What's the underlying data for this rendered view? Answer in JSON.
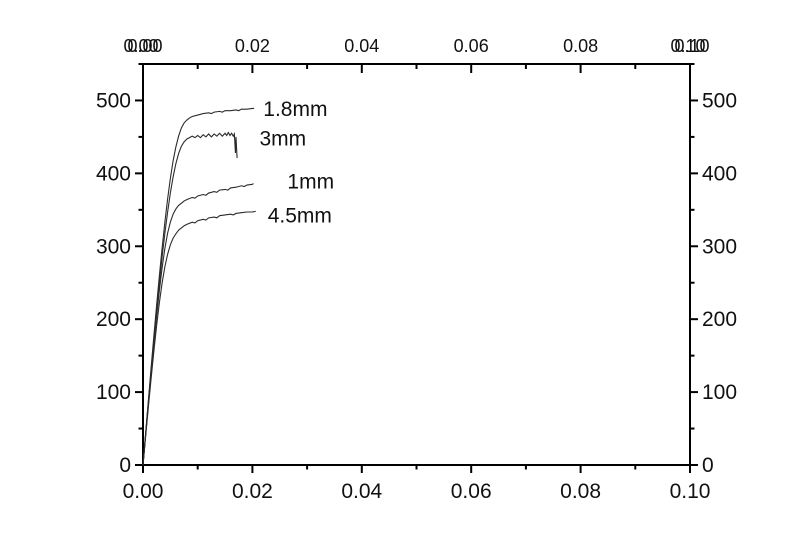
{
  "figure": {
    "background": "#ffffff",
    "frame_color": "#000000",
    "curve_color": "#2b2b2b"
  },
  "chart_data": {
    "type": "line",
    "title": "",
    "xlabel": "",
    "ylabel": "",
    "xlim": [
      0,
      0.1
    ],
    "ylim": [
      0,
      550
    ],
    "grid": false,
    "legend": "inline-annotations",
    "axes_mirrored": true,
    "top_axis_end_labels_doubled": true,
    "x_major_ticks": [
      0,
      0.02,
      0.04,
      0.06,
      0.08,
      0.1
    ],
    "x_major_tick_labels": [
      "0.00",
      "0.02",
      "0.04",
      "0.06",
      "0.08",
      "0.10"
    ],
    "x_minor_ticks": [
      0.01,
      0.03,
      0.05,
      0.07,
      0.09
    ],
    "y_major_ticks": [
      0,
      100,
      200,
      300,
      400,
      500
    ],
    "y_major_tick_labels": [
      "0",
      "100",
      "200",
      "300",
      "400",
      "500"
    ],
    "y_minor_ticks": [
      50,
      150,
      250,
      350,
      450,
      550
    ],
    "series": [
      {
        "name": "1.8mm",
        "points": [
          [
            0,
            0
          ],
          [
            0.0005,
            45
          ],
          [
            0.001,
            90
          ],
          [
            0.0015,
            135
          ],
          [
            0.002,
            178
          ],
          [
            0.0025,
            220
          ],
          [
            0.003,
            260
          ],
          [
            0.0035,
            298
          ],
          [
            0.004,
            333
          ],
          [
            0.0045,
            365
          ],
          [
            0.005,
            393
          ],
          [
            0.0055,
            417
          ],
          [
            0.006,
            436
          ],
          [
            0.0065,
            451
          ],
          [
            0.007,
            462
          ],
          [
            0.0075,
            469
          ],
          [
            0.008,
            473
          ],
          [
            0.0085,
            476
          ],
          [
            0.009,
            478
          ],
          [
            0.01,
            480
          ],
          [
            0.011,
            482
          ],
          [
            0.012,
            483
          ],
          [
            0.0125,
            482
          ],
          [
            0.013,
            484
          ],
          [
            0.014,
            485
          ],
          [
            0.0145,
            484
          ],
          [
            0.015,
            486
          ],
          [
            0.016,
            486
          ],
          [
            0.017,
            487
          ],
          [
            0.0175,
            486
          ],
          [
            0.018,
            488
          ],
          [
            0.019,
            488
          ],
          [
            0.02,
            489
          ],
          [
            0.0203,
            489
          ]
        ]
      },
      {
        "name": "3mm",
        "points": [
          [
            0,
            0
          ],
          [
            0.0005,
            44
          ],
          [
            0.001,
            88
          ],
          [
            0.0015,
            131
          ],
          [
            0.002,
            172
          ],
          [
            0.0025,
            212
          ],
          [
            0.003,
            250
          ],
          [
            0.0035,
            286
          ],
          [
            0.004,
            318
          ],
          [
            0.0045,
            347
          ],
          [
            0.005,
            373
          ],
          [
            0.0055,
            395
          ],
          [
            0.006,
            413
          ],
          [
            0.0065,
            427
          ],
          [
            0.007,
            437
          ],
          [
            0.0075,
            443
          ],
          [
            0.008,
            447
          ],
          [
            0.0085,
            449
          ],
          [
            0.009,
            451
          ],
          [
            0.0095,
            449
          ],
          [
            0.01,
            452
          ],
          [
            0.0105,
            449
          ],
          [
            0.011,
            453
          ],
          [
            0.0115,
            450
          ],
          [
            0.012,
            454
          ],
          [
            0.0125,
            450
          ],
          [
            0.013,
            454
          ],
          [
            0.0135,
            451
          ],
          [
            0.014,
            455
          ],
          [
            0.0145,
            451
          ],
          [
            0.015,
            455
          ],
          [
            0.0153,
            452
          ],
          [
            0.0156,
            456
          ],
          [
            0.0159,
            452
          ],
          [
            0.0162,
            455
          ],
          [
            0.0165,
            451
          ],
          [
            0.0167,
            454
          ],
          [
            0.0169,
            428
          ],
          [
            0.017,
            450
          ],
          [
            0.0172,
            421
          ]
        ]
      },
      {
        "name": "1mm",
        "points": [
          [
            0,
            0
          ],
          [
            0.0005,
            43
          ],
          [
            0.001,
            85
          ],
          [
            0.0015,
            127
          ],
          [
            0.002,
            167
          ],
          [
            0.0025,
            205
          ],
          [
            0.003,
            240
          ],
          [
            0.0035,
            271
          ],
          [
            0.004,
            297
          ],
          [
            0.0045,
            318
          ],
          [
            0.005,
            333
          ],
          [
            0.0055,
            344
          ],
          [
            0.006,
            351
          ],
          [
            0.0065,
            356
          ],
          [
            0.007,
            359
          ],
          [
            0.0075,
            362
          ],
          [
            0.008,
            364
          ],
          [
            0.009,
            367
          ],
          [
            0.0095,
            366
          ],
          [
            0.01,
            369
          ],
          [
            0.011,
            371
          ],
          [
            0.0115,
            370
          ],
          [
            0.012,
            373
          ],
          [
            0.013,
            375
          ],
          [
            0.0135,
            374
          ],
          [
            0.014,
            377
          ],
          [
            0.015,
            378
          ],
          [
            0.0155,
            377
          ],
          [
            0.016,
            380
          ],
          [
            0.017,
            381
          ],
          [
            0.018,
            383
          ],
          [
            0.0185,
            382
          ],
          [
            0.019,
            384
          ],
          [
            0.02,
            385
          ],
          [
            0.0202,
            386
          ]
        ]
      },
      {
        "name": "4.5mm",
        "points": [
          [
            0,
            0
          ],
          [
            0.0005,
            41
          ],
          [
            0.001,
            81
          ],
          [
            0.0015,
            120
          ],
          [
            0.002,
            157
          ],
          [
            0.0025,
            192
          ],
          [
            0.003,
            223
          ],
          [
            0.0035,
            250
          ],
          [
            0.004,
            272
          ],
          [
            0.0045,
            289
          ],
          [
            0.005,
            302
          ],
          [
            0.0055,
            311
          ],
          [
            0.006,
            317
          ],
          [
            0.0065,
            322
          ],
          [
            0.007,
            325
          ],
          [
            0.0075,
            328
          ],
          [
            0.008,
            330
          ],
          [
            0.009,
            333
          ],
          [
            0.0095,
            332
          ],
          [
            0.01,
            335
          ],
          [
            0.011,
            337
          ],
          [
            0.0115,
            336
          ],
          [
            0.012,
            339
          ],
          [
            0.013,
            340
          ],
          [
            0.0135,
            339
          ],
          [
            0.014,
            342
          ],
          [
            0.015,
            343
          ],
          [
            0.016,
            344
          ],
          [
            0.0165,
            343
          ],
          [
            0.017,
            345
          ],
          [
            0.018,
            346
          ],
          [
            0.019,
            347
          ],
          [
            0.02,
            347
          ],
          [
            0.0206,
            348
          ]
        ]
      }
    ],
    "annotations": [
      {
        "text": "1.8mm",
        "x": 0.022,
        "y": 488
      },
      {
        "text": "3mm",
        "x": 0.0213,
        "y": 448
      },
      {
        "text": "1mm",
        "x": 0.0264,
        "y": 389
      },
      {
        "text": "4.5mm",
        "x": 0.0228,
        "y": 342
      }
    ]
  }
}
